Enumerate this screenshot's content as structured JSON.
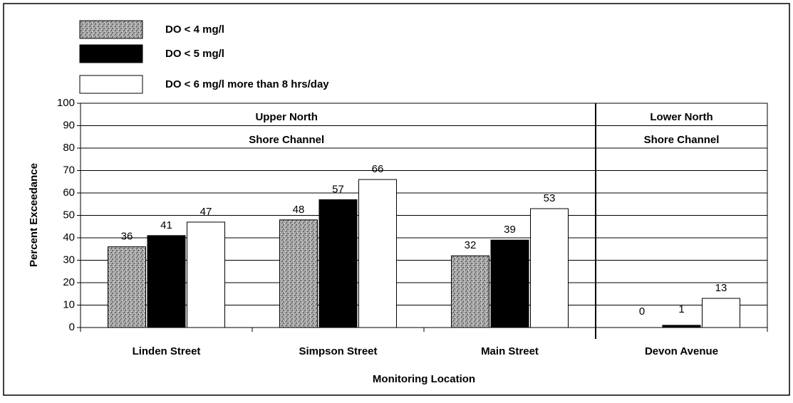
{
  "chart_data": {
    "type": "bar",
    "y_label": "Percent Exceedance",
    "x_label": "Monitoring Location",
    "categories": [
      "Linden Street",
      "Simpson Street",
      "Main Street",
      "Devon Avenue"
    ],
    "series": [
      {
        "name": "DO < 4 mg/l",
        "color": "#a8a8a8",
        "values": [
          36,
          48,
          32,
          0
        ]
      },
      {
        "name": "DO < 5 mg/l",
        "color": "#000000",
        "values": [
          41,
          57,
          39,
          1
        ]
      },
      {
        "name": "DO < 6 mg/l more than 8 hrs/day",
        "color": "#ffffff",
        "values": [
          47,
          66,
          53,
          13
        ]
      }
    ],
    "annotations": [
      "Upper North",
      "Shore Channel",
      "Lower North",
      "Shore Channel"
    ],
    "ylim": [
      0,
      100
    ],
    "yticks": [
      0,
      10,
      20,
      30,
      40,
      50,
      60,
      70,
      80,
      90,
      100
    ],
    "grid": true
  }
}
